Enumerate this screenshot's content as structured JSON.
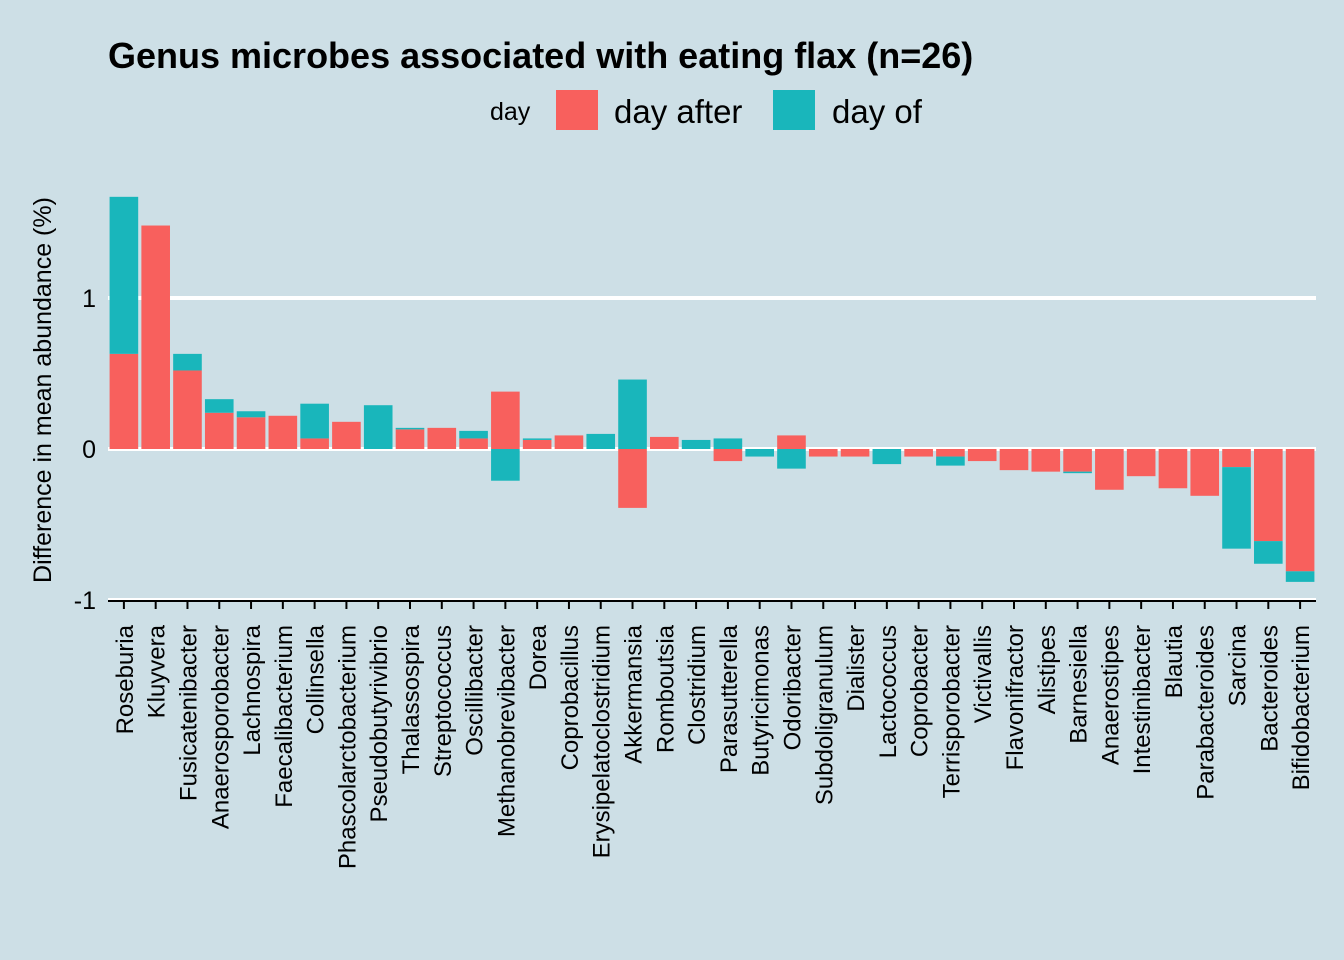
{
  "chart_data": {
    "type": "bar",
    "title": "Genus microbes associated with eating flax (n=26)",
    "xlabel": "",
    "ylabel": "Difference in mean abundance (%)",
    "ylim": [
      -1.0,
      1.75
    ],
    "yticks": [
      -1,
      0,
      1
    ],
    "ytick_labels": [
      "-1",
      "0",
      "1"
    ],
    "grid": true,
    "legend_title": "day",
    "legend_position": "top",
    "categories": [
      "Roseburia",
      "Kluyvera",
      "Fusicatenibacter",
      "Anaerosporobacter",
      "Lachnospira",
      "Faecalibacterium",
      "Collinsella",
      "Phascolarctobacterium",
      "Pseudobutyrivibrio",
      "Thalassospira",
      "Streptococcus",
      "Oscillibacter",
      "Methanobrevibacter",
      "Dorea",
      "Coprobacillus",
      "Erysipelatoclostridium",
      "Akkermansia",
      "Romboutsia",
      "Clostridium",
      "Parasutterella",
      "Butyricimonas",
      "Odoribacter",
      "Subdoligranulum",
      "Dialister",
      "Lactococcus",
      "Coprobacter",
      "Terrisporobacter",
      "Victivallis",
      "Flavonifractor",
      "Alistipes",
      "Barnesiella",
      "Anaerostipes",
      "Intestinibacter",
      "Blautia",
      "Parabacteroides",
      "Sarcina",
      "Bacteroides",
      "Bifidobacterium"
    ],
    "series": [
      {
        "name": "day after",
        "color": "#f8605d",
        "values": [
          0.63,
          1.48,
          0.52,
          0.24,
          0.21,
          0.22,
          0.07,
          0.18,
          0.0,
          0.13,
          0.14,
          0.07,
          0.38,
          0.06,
          0.09,
          0.0,
          -0.39,
          0.08,
          0.0,
          -0.08,
          0.0,
          0.09,
          -0.05,
          -0.05,
          0.0,
          -0.05,
          -0.05,
          -0.08,
          -0.14,
          -0.15,
          -0.15,
          -0.27,
          -0.18,
          -0.26,
          -0.31,
          -0.12,
          -0.61,
          -0.81
        ]
      },
      {
        "name": "day of",
        "color": "#19b6bb",
        "values": [
          1.04,
          0.0,
          0.11,
          0.09,
          0.04,
          0.0,
          0.23,
          0.0,
          0.29,
          0.01,
          0.0,
          0.05,
          -0.21,
          0.01,
          0.0,
          0.1,
          0.46,
          0.0,
          0.06,
          0.07,
          -0.05,
          -0.13,
          0.0,
          0.0,
          -0.1,
          0.0,
          -0.06,
          0.0,
          0.0,
          0.0,
          -0.01,
          0.0,
          0.0,
          0.0,
          0.0,
          -0.54,
          -0.15,
          -0.07
        ]
      }
    ]
  }
}
